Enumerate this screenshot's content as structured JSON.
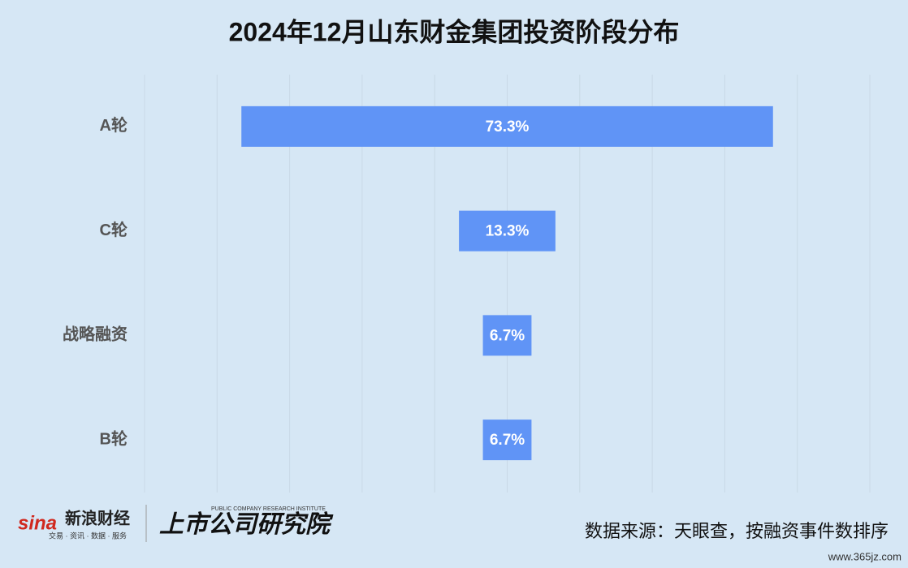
{
  "chart_data": {
    "type": "funnel",
    "title": "2024年12月山东财金集团投资阶段分布",
    "categories": [
      "A轮",
      "C轮",
      "战略融资",
      "B轮"
    ],
    "values": [
      73.3,
      13.3,
      6.7,
      6.7
    ],
    "value_labels": [
      "73.3%",
      "13.3%",
      "6.7%",
      "6.7%"
    ],
    "color": "#6094f6",
    "xlim": [
      -50,
      50
    ],
    "xticks": [
      -50,
      -40,
      -30,
      -20,
      -10,
      0,
      10,
      20,
      30,
      40,
      50
    ],
    "grid": true
  },
  "footer": {
    "source": "数据来源：天眼查，按融资事件数排序",
    "logo_sina": "sina",
    "logo_sina_name": "新浪财经",
    "logo_sina_tagline": "交易 · 资讯 · 数据 · 服务",
    "logo_institute": "上市公司研究院",
    "logo_institute_en": "PUBLIC COMPANY RESEARCH INSTITUTE",
    "watermark": "www.365jz.com"
  }
}
